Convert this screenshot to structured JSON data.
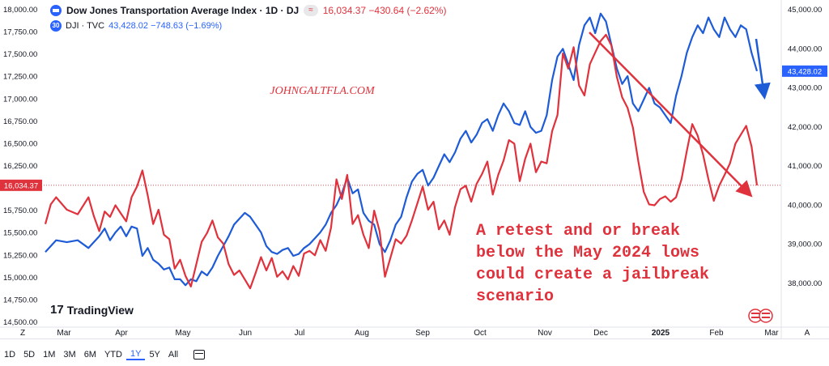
{
  "header": {
    "title": "Dow Jones Transportation Average Index · 1D · DJ",
    "pill": "≈",
    "values": "16,034.37  −430.64 (−2.62%)",
    "dji_label": "DJI · TVC",
    "dji_values": "43,428.02  −748.63 (−1.69%)",
    "dji_badge": "30"
  },
  "colors": {
    "red": "#e0323c",
    "blue": "#1e5bd6",
    "red_label_bg": "#e0323c",
    "blue_label_bg": "#2962ff"
  },
  "toolbar": {
    "ranges": [
      "1D",
      "5D",
      "1M",
      "3M",
      "6M",
      "YTD",
      "1Y",
      "5Y",
      "All"
    ],
    "active": "1Y"
  },
  "branding": {
    "tradingview": "TradingView",
    "watermark": "JOHNGALTFLA.COM"
  },
  "annotation": {
    "lines": [
      "A retest and or break",
      "below the May 2024 lows",
      "could create a jailbreak",
      "scenario"
    ]
  },
  "chart_data": {
    "type": "line",
    "x_ticks": [
      "Z",
      "Mar",
      "Apr",
      "May",
      "Jun",
      "Jul",
      "Aug",
      "Sep",
      "Oct",
      "Nov",
      "Dec",
      "2025",
      "Feb",
      "Mar",
      "A"
    ],
    "left_axis": {
      "labels": [
        "18,000.00",
        "17,750.00",
        "17,500.00",
        "17,250.00",
        "17,000.00",
        "16,750.00",
        "16,500.00",
        "16,250.00",
        "15,750.00",
        "15,500.00",
        "15,250.00",
        "15,000.00",
        "14,750.00",
        "14,500.00"
      ],
      "range": [
        14500,
        18000
      ],
      "last_label": "16,034.37"
    },
    "right_axis": {
      "labels": [
        "45,000.00",
        "44,000.00",
        "43,000.00",
        "42,000.00",
        "41,000.00",
        "40,000.00",
        "39,000.00",
        "38,000.00"
      ],
      "range": [
        37000,
        45000
      ],
      "last_label": "43,428.02"
    },
    "series": [
      {
        "name": "Dow Jones Transportation Average Index",
        "axis": "left",
        "points": [
          [
            0,
            15600
          ],
          [
            1,
            15820
          ],
          [
            2,
            15900
          ],
          [
            4,
            15760
          ],
          [
            6,
            15710
          ],
          [
            8,
            15900
          ],
          [
            9,
            15690
          ],
          [
            10,
            15520
          ],
          [
            11,
            15740
          ],
          [
            12,
            15680
          ],
          [
            13,
            15810
          ],
          [
            14,
            15720
          ],
          [
            15,
            15630
          ],
          [
            16,
            15900
          ],
          [
            17,
            16020
          ],
          [
            18,
            16200
          ],
          [
            19,
            15920
          ],
          [
            20,
            15600
          ],
          [
            21,
            15760
          ],
          [
            22,
            15480
          ],
          [
            23,
            15430
          ],
          [
            24,
            15100
          ],
          [
            25,
            15200
          ],
          [
            26,
            15020
          ],
          [
            27,
            14900
          ],
          [
            28,
            15150
          ],
          [
            29,
            15400
          ],
          [
            30,
            15500
          ],
          [
            31,
            15640
          ],
          [
            32,
            15450
          ],
          [
            33,
            15380
          ],
          [
            34,
            15150
          ],
          [
            35,
            15030
          ],
          [
            36,
            15080
          ],
          [
            37,
            14980
          ],
          [
            38,
            14880
          ],
          [
            39,
            15050
          ],
          [
            40,
            15230
          ],
          [
            41,
            15080
          ],
          [
            42,
            15220
          ],
          [
            43,
            15010
          ],
          [
            44,
            15070
          ],
          [
            45,
            14980
          ],
          [
            46,
            15130
          ],
          [
            47,
            15020
          ],
          [
            48,
            15270
          ],
          [
            49,
            15300
          ],
          [
            50,
            15250
          ],
          [
            51,
            15420
          ],
          [
            52,
            15300
          ],
          [
            53,
            15560
          ],
          [
            54,
            16100
          ],
          [
            55,
            15880
          ],
          [
            56,
            16150
          ],
          [
            57,
            15600
          ],
          [
            58,
            15700
          ],
          [
            59,
            15480
          ],
          [
            60,
            15330
          ],
          [
            61,
            15750
          ],
          [
            62,
            15520
          ],
          [
            63,
            15010
          ],
          [
            64,
            15220
          ],
          [
            65,
            15430
          ],
          [
            66,
            15380
          ],
          [
            67,
            15470
          ],
          [
            68,
            15640
          ],
          [
            69,
            15830
          ],
          [
            70,
            16020
          ],
          [
            71,
            15760
          ],
          [
            72,
            15850
          ],
          [
            73,
            15540
          ],
          [
            74,
            15640
          ],
          [
            75,
            15480
          ],
          [
            76,
            15790
          ],
          [
            77,
            15990
          ],
          [
            78,
            16030
          ],
          [
            79,
            15850
          ],
          [
            80,
            16050
          ],
          [
            81,
            16160
          ],
          [
            82,
            16300
          ],
          [
            83,
            15930
          ],
          [
            84,
            16150
          ],
          [
            85,
            16310
          ],
          [
            86,
            16540
          ],
          [
            87,
            16500
          ],
          [
            88,
            16080
          ],
          [
            89,
            16330
          ],
          [
            90,
            16500
          ],
          [
            91,
            16180
          ],
          [
            92,
            16300
          ],
          [
            93,
            16280
          ],
          [
            94,
            16640
          ],
          [
            95,
            16820
          ],
          [
            96,
            17510
          ],
          [
            97,
            17340
          ],
          [
            98,
            17580
          ],
          [
            99,
            17150
          ],
          [
            100,
            17040
          ],
          [
            101,
            17390
          ],
          [
            102,
            17520
          ],
          [
            103,
            17650
          ],
          [
            104,
            17720
          ],
          [
            105,
            17600
          ],
          [
            106,
            17250
          ],
          [
            107,
            17020
          ],
          [
            108,
            16900
          ],
          [
            109,
            16680
          ],
          [
            110,
            16300
          ],
          [
            111,
            15960
          ],
          [
            112,
            15820
          ],
          [
            113,
            15810
          ],
          [
            114,
            15880
          ],
          [
            115,
            15910
          ],
          [
            116,
            15850
          ],
          [
            117,
            15900
          ],
          [
            118,
            16100
          ],
          [
            119,
            16420
          ],
          [
            120,
            16720
          ],
          [
            121,
            16590
          ],
          [
            122,
            16380
          ],
          [
            123,
            16100
          ],
          [
            124,
            15860
          ],
          [
            125,
            16030
          ],
          [
            126,
            16150
          ],
          [
            127,
            16280
          ],
          [
            128,
            16500
          ],
          [
            129,
            16600
          ],
          [
            130,
            16700
          ],
          [
            131,
            16470
          ],
          [
            132,
            16034
          ]
        ]
      },
      {
        "name": "DJI",
        "axis": "right",
        "points": [
          [
            0,
            38800
          ],
          [
            2,
            39100
          ],
          [
            4,
            39050
          ],
          [
            6,
            39100
          ],
          [
            8,
            38900
          ],
          [
            10,
            39200
          ],
          [
            11,
            39400
          ],
          [
            12,
            39100
          ],
          [
            13,
            39300
          ],
          [
            14,
            39450
          ],
          [
            15,
            39200
          ],
          [
            16,
            39450
          ],
          [
            17,
            39400
          ],
          [
            18,
            38700
          ],
          [
            19,
            38900
          ],
          [
            20,
            38600
          ],
          [
            21,
            38500
          ],
          [
            22,
            38350
          ],
          [
            23,
            38400
          ],
          [
            24,
            38100
          ],
          [
            25,
            38100
          ],
          [
            26,
            37950
          ],
          [
            27,
            38100
          ],
          [
            28,
            38050
          ],
          [
            29,
            38300
          ],
          [
            30,
            38200
          ],
          [
            31,
            38400
          ],
          [
            32,
            38700
          ],
          [
            33,
            38950
          ],
          [
            34,
            39200
          ],
          [
            35,
            39500
          ],
          [
            36,
            39650
          ],
          [
            37,
            39800
          ],
          [
            38,
            39700
          ],
          [
            39,
            39500
          ],
          [
            40,
            39300
          ],
          [
            41,
            38950
          ],
          [
            42,
            38800
          ],
          [
            43,
            38750
          ],
          [
            44,
            38850
          ],
          [
            45,
            38900
          ],
          [
            46,
            38700
          ],
          [
            47,
            38750
          ],
          [
            48,
            38900
          ],
          [
            49,
            39000
          ],
          [
            50,
            39150
          ],
          [
            51,
            39300
          ],
          [
            52,
            39500
          ],
          [
            53,
            39800
          ],
          [
            54,
            40000
          ],
          [
            55,
            40300
          ],
          [
            56,
            40700
          ],
          [
            57,
            40300
          ],
          [
            58,
            40400
          ],
          [
            59,
            39800
          ],
          [
            60,
            39600
          ],
          [
            61,
            39500
          ],
          [
            62,
            39000
          ],
          [
            63,
            38800
          ],
          [
            64,
            39100
          ],
          [
            65,
            39500
          ],
          [
            66,
            39700
          ],
          [
            67,
            40200
          ],
          [
            68,
            40600
          ],
          [
            69,
            40800
          ],
          [
            70,
            40900
          ],
          [
            71,
            40500
          ],
          [
            72,
            40700
          ],
          [
            73,
            41000
          ],
          [
            74,
            41300
          ],
          [
            75,
            41100
          ],
          [
            76,
            41350
          ],
          [
            77,
            41700
          ],
          [
            78,
            41900
          ],
          [
            79,
            41600
          ],
          [
            80,
            41800
          ],
          [
            81,
            42100
          ],
          [
            82,
            42200
          ],
          [
            83,
            41900
          ],
          [
            84,
            42300
          ],
          [
            85,
            42600
          ],
          [
            86,
            42400
          ],
          [
            87,
            42100
          ],
          [
            88,
            42050
          ],
          [
            89,
            42400
          ],
          [
            90,
            42000
          ],
          [
            91,
            41850
          ],
          [
            92,
            41900
          ],
          [
            93,
            42300
          ],
          [
            94,
            43200
          ],
          [
            95,
            43800
          ],
          [
            96,
            44000
          ],
          [
            97,
            43600
          ],
          [
            98,
            43200
          ],
          [
            99,
            44100
          ],
          [
            100,
            44600
          ],
          [
            101,
            44800
          ],
          [
            102,
            44400
          ],
          [
            103,
            44900
          ],
          [
            104,
            44700
          ],
          [
            105,
            44100
          ],
          [
            106,
            43500
          ],
          [
            107,
            43100
          ],
          [
            108,
            43300
          ],
          [
            109,
            42600
          ],
          [
            110,
            42400
          ],
          [
            111,
            42700
          ],
          [
            112,
            43000
          ],
          [
            113,
            42600
          ],
          [
            114,
            42500
          ],
          [
            115,
            42300
          ],
          [
            116,
            42100
          ],
          [
            117,
            42800
          ],
          [
            118,
            43300
          ],
          [
            119,
            43900
          ],
          [
            120,
            44300
          ],
          [
            121,
            44600
          ],
          [
            122,
            44400
          ],
          [
            123,
            44800
          ],
          [
            124,
            44500
          ],
          [
            125,
            44300
          ],
          [
            126,
            44800
          ],
          [
            127,
            44500
          ],
          [
            128,
            44300
          ],
          [
            129,
            44600
          ],
          [
            130,
            44500
          ],
          [
            131,
            43900
          ],
          [
            132,
            43428
          ]
        ]
      }
    ]
  }
}
